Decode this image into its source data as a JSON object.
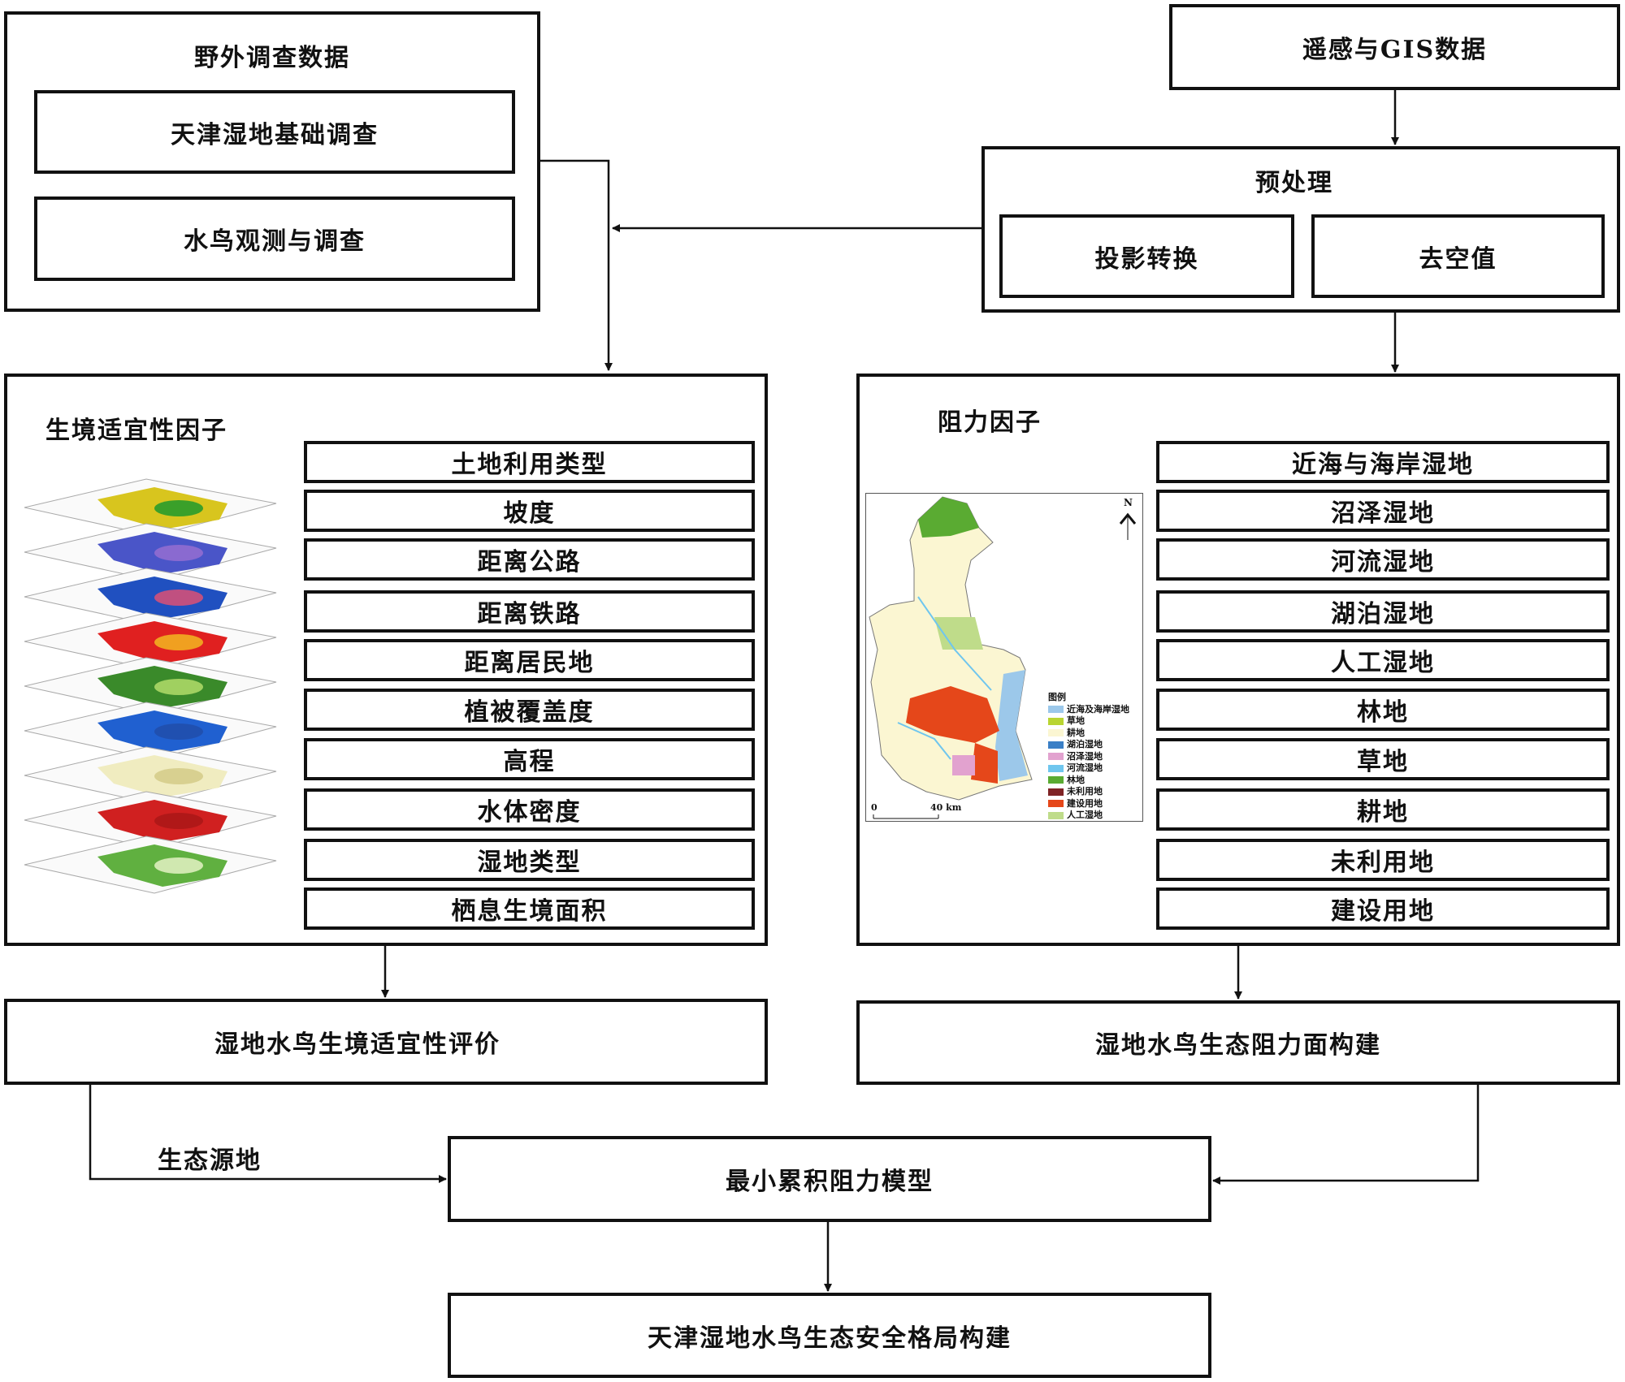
{
  "field_survey": {
    "title": "野外调查数据",
    "items": [
      "天津湿地基础调查",
      "水鸟观测与调查"
    ]
  },
  "remote_sensing": {
    "title": "遥感与GIS数据"
  },
  "preprocessing": {
    "title": "预处理",
    "items": [
      "投影转换",
      "去空值"
    ]
  },
  "habitat_factors": {
    "title": "生境适宜性因子",
    "items": [
      "土地利用类型",
      "坡度",
      "距离公路",
      "距离铁路",
      "距离居民地",
      "植被覆盖度",
      "高程",
      "水体密度",
      "湿地类型",
      "栖息生境面积"
    ]
  },
  "resistance_factors": {
    "title": "阻力因子",
    "items": [
      "近海与海岸湿地",
      "沼泽湿地",
      "河流湿地",
      "湖泊湿地",
      "人工湿地",
      "林地",
      "草地",
      "耕地",
      "未利用地",
      "建设用地"
    ]
  },
  "map": {
    "north": "N",
    "scale_start": "0",
    "scale_end": "40 km",
    "legend_title": "图例",
    "legend": [
      {
        "label": "近海及海岸湿地",
        "color": "#9cc8ea"
      },
      {
        "label": "草地",
        "color": "#b9d532"
      },
      {
        "label": "耕地",
        "color": "#fbf6d2"
      },
      {
        "label": "湖泊湿地",
        "color": "#3a7fc6"
      },
      {
        "label": "沼泽湿地",
        "color": "#e2a2cf"
      },
      {
        "label": "河流湿地",
        "color": "#6fc6ee"
      },
      {
        "label": "林地",
        "color": "#5aab32"
      },
      {
        "label": "未利用地",
        "color": "#7f2325"
      },
      {
        "label": "建设用地",
        "color": "#e5471a"
      },
      {
        "label": "人工湿地",
        "color": "#bfdc8a"
      }
    ]
  },
  "habitat_evaluation": "湿地水鸟生境适宜性评价",
  "resistance_surface": "湿地水鸟生态阻力面构建",
  "ecological_source_label": "生态源地",
  "mcr_model": "最小累积阻力模型",
  "final": "天津湿地水鸟生态安全格局构建"
}
